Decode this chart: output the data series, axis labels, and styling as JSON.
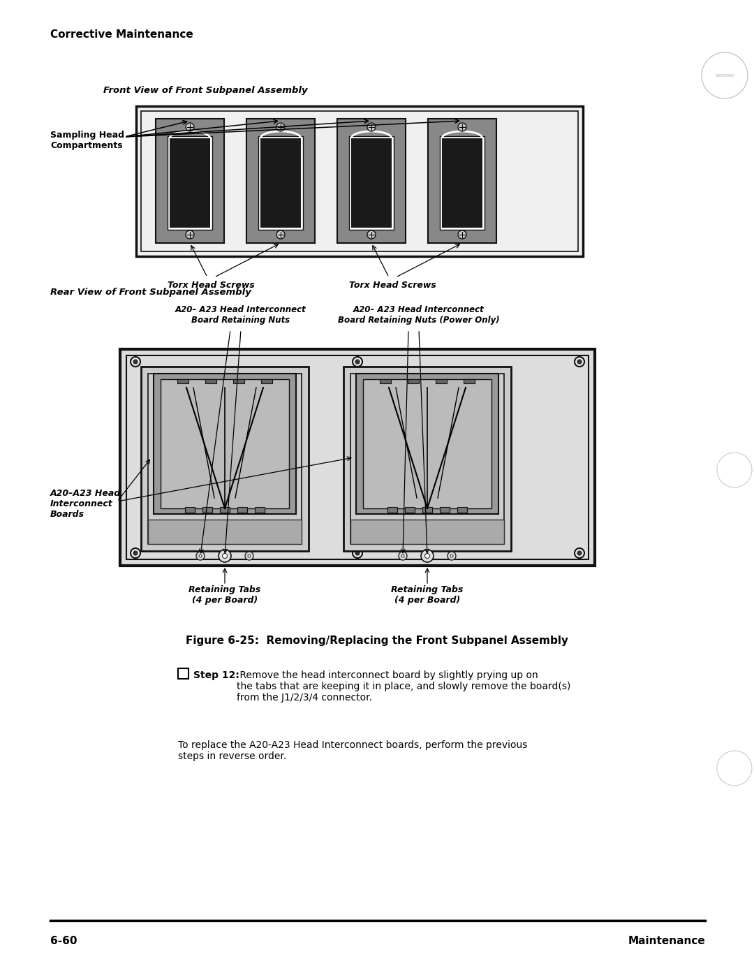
{
  "bg_color": "#ffffff",
  "text_color": "#000000",
  "header_text": "Corrective Maintenance",
  "footer_left": "6-60",
  "footer_right": "Maintenance",
  "fig_caption": "Figure 6-25:  Removing/Replacing the Front Subpanel Assembly",
  "front_view_label": "Front View of Front Subpanel Assembly",
  "rear_view_label": "Rear View of Front Subpanel Assembly",
  "sampling_head_label": "Sampling Head\nCompartments",
  "torx_label1": "Torx Head Screws",
  "torx_label2": "Torx Head Screws",
  "a20_a23_nuts_label1": "A20– A23 Head Interconnect\nBoard Retaining Nuts",
  "a20_a23_nuts_label2": "A20– A23 Head Interconnect\nBoard Retaining Nuts (Power Only)",
  "a20_a23_boards_label": "A20–A23 Head\nInterconnect\nBoards",
  "retaining_tabs_label1": "Retaining Tabs\n(4 per Board)",
  "retaining_tabs_label2": "Retaining Tabs\n(4 per Board)",
  "step12_bold": "Step 12:",
  "step12_text": " Remove the head interconnect board by slightly prying up on\nthe tabs that are keeping it in place, and slowly remove the board(s)\nfrom the J1/2/3/4 connector.",
  "para_text": "To replace the A20-A23 Head Interconnect boards, perform the previous\nsteps in reverse order."
}
